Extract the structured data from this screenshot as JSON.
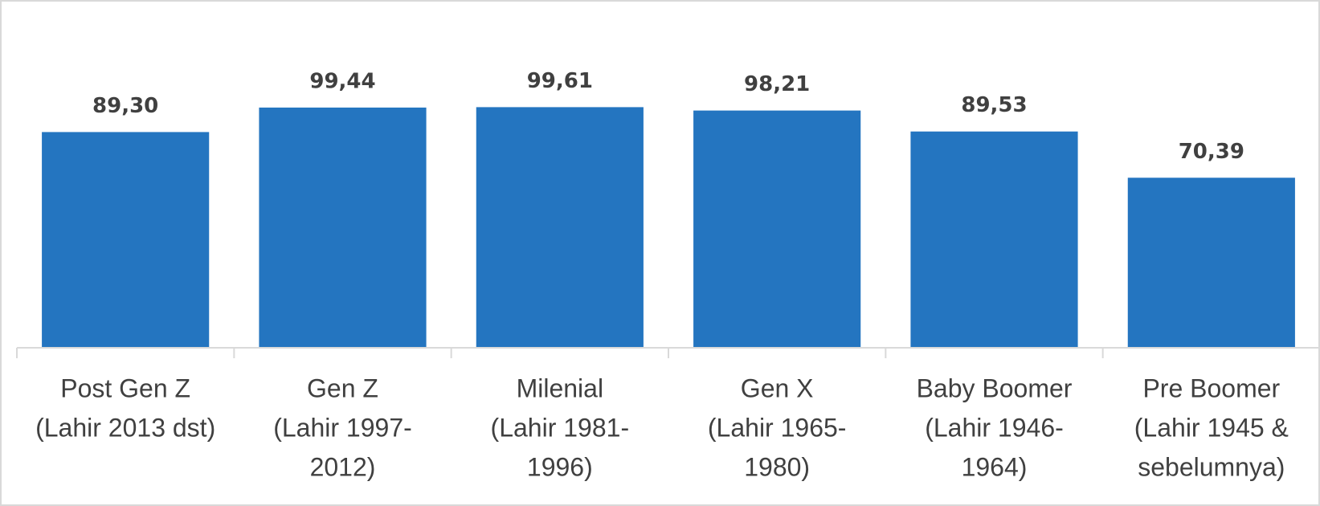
{
  "chart_data": {
    "type": "bar",
    "categories": [
      [
        "Post Gen Z",
        "(Lahir 2013 dst)"
      ],
      [
        "Gen Z",
        "(Lahir 1997-",
        "2012)"
      ],
      [
        "Milenial",
        "(Lahir 1981-",
        "1996)"
      ],
      [
        "Gen X",
        "(Lahir 1965-",
        "1980)"
      ],
      [
        "Baby Boomer",
        "(Lahir 1946-",
        "1964)"
      ],
      [
        "Pre Boomer",
        "(Lahir 1945 &",
        "sebelumnya)"
      ]
    ],
    "values": [
      89.3,
      99.44,
      99.61,
      98.21,
      89.53,
      70.39
    ],
    "value_labels": [
      "89,30",
      "99,44",
      "99,61",
      "98,21",
      "89,53",
      "70,39"
    ],
    "color": "#2475c0",
    "ylim": [
      0,
      130
    ]
  }
}
